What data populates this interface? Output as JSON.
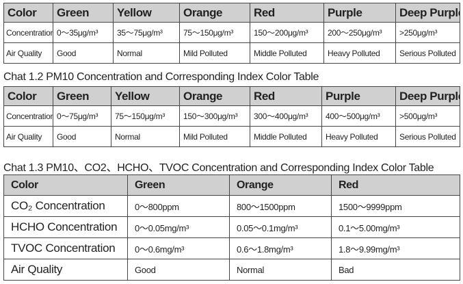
{
  "tables": [
    {
      "header": [
        "Color",
        "Green",
        "Yellow",
        "Orange",
        "Red",
        "Purple",
        "Deep Purple"
      ],
      "rows": [
        [
          "Concentration",
          "0～35μg/m³",
          "35～75μg/m³",
          "75～150μg/m³",
          "150～200μg/m³",
          "200～250μg/m³",
          ">250μg/m³"
        ],
        [
          "Air Quality",
          "Good",
          "Normal",
          "Mild Polluted",
          "Middle Polluted",
          "Heavy Polluted",
          "Serious Polluted"
        ]
      ]
    },
    {
      "caption": "Chat 1.2  PM10 Concentration and Corresponding Index Color Table",
      "header": [
        "Color",
        "Green",
        "Yellow",
        "Orange",
        "Red",
        "Purple",
        "Deep Purple"
      ],
      "rows": [
        [
          "Concentration",
          "0～75μg/m³",
          "75～150μg/m³",
          "150～300μg/m³",
          "300～400μg/m³",
          "400～500μg/m³",
          ">500μg/m³"
        ],
        [
          "Air Quality",
          "Good",
          "Normal",
          "Mild Polluted",
          "Middle Polluted",
          "Heavy Polluted",
          "Serious Polluted"
        ]
      ]
    },
    {
      "caption": "Chat 1.3 PM10、CO2、HCHO、TVOC Concentration and Corresponding Index Color Table",
      "header": [
        "Color",
        "Green",
        "Orange",
        "Red"
      ],
      "rows": [
        [
          "CO₂ Concentration",
          "0～800ppm",
          "800～1500ppm",
          "1500～9999ppm"
        ],
        [
          "HCHO Concentration",
          "0～0.05mg/m³",
          "0.05～0.1mg/m³",
          "0.1～5.00mg/m³"
        ],
        [
          "TVOC Concentration",
          "0～0.6mg/m³",
          "0.6～1.8mg/m³",
          "1.8～9.99mg/m³"
        ],
        [
          "Air Quality",
          "Good",
          "Normal",
          "Bad"
        ]
      ]
    }
  ]
}
